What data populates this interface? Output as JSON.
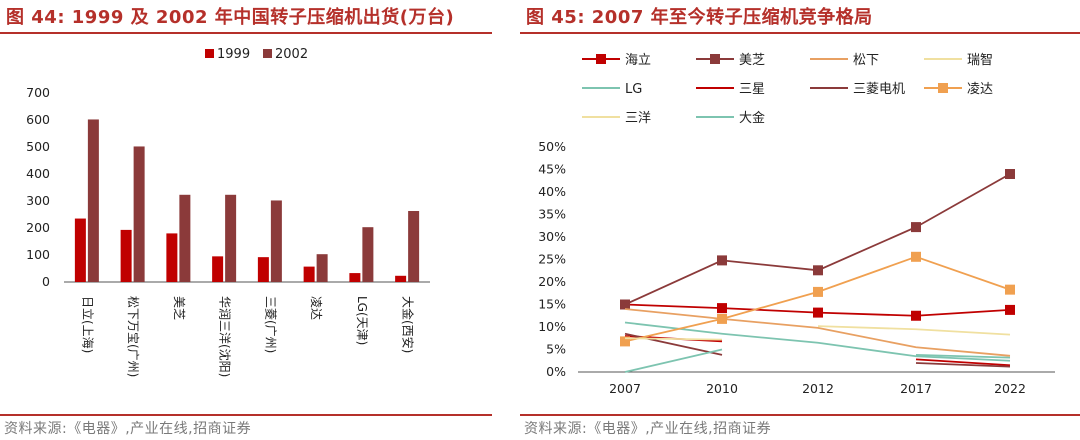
{
  "left_panel": {
    "title": "图 44: 1999 及 2002 年中国转子压缩机出货(万台)",
    "source": "资料来源:《电器》,产业在线,招商证券"
  },
  "right_panel": {
    "title": "图 45:  2007 年至今转子压缩机竞争格局",
    "source": "资料来源:《电器》,产业在线,招商证券"
  },
  "chart_data": [
    {
      "type": "bar",
      "title": "图 44: 1999 及 2002 年中国转子压缩机出货(万台)",
      "categories": [
        "日立(上海)",
        "松下万宝(广州)",
        "美芝",
        "华润三洋(沈阳)",
        "三菱(广州)",
        "凌达",
        "LG(天津)",
        "大金(西安)"
      ],
      "series": [
        {
          "name": "1999",
          "color": "#c00000",
          "values": [
            235,
            193,
            180,
            95,
            92,
            57,
            33,
            23
          ]
        },
        {
          "name": "2002",
          "color": "#8b3a3a",
          "values": [
            602,
            502,
            323,
            323,
            302,
            103,
            203,
            263
          ]
        }
      ],
      "yticks": [
        "0",
        "100",
        "200",
        "300",
        "400",
        "500",
        "600",
        "700"
      ],
      "ylim": [
        0,
        700
      ],
      "legend": "top-center",
      "grid": false
    },
    {
      "type": "line",
      "title": "图 45:  2007 年至今转子压缩机竞争格局",
      "x": [
        "2007",
        "2010",
        "2012",
        "2017",
        "2022"
      ],
      "yticks": [
        "0%",
        "5%",
        "10%",
        "15%",
        "20%",
        "25%",
        "30%",
        "35%",
        "40%",
        "45%",
        "50%"
      ],
      "ylim": [
        0,
        50
      ],
      "legend": "top",
      "grid": false,
      "series": [
        {
          "name": "海立",
          "color": "#c00000",
          "marker": true,
          "values": [
            15.0,
            14.2,
            13.2,
            12.5,
            13.8
          ]
        },
        {
          "name": "美芝",
          "color": "#8b3a3a",
          "marker": true,
          "values": [
            15.0,
            24.8,
            22.6,
            32.2,
            44.0
          ]
        },
        {
          "name": "松下",
          "color": "#e8a062",
          "marker": false,
          "values": [
            14.0,
            11.8,
            9.8,
            5.5,
            3.6
          ]
        },
        {
          "name": "瑞智",
          "color": "#f0e0a0",
          "marker": false,
          "values": [
            null,
            null,
            10.2,
            9.5,
            8.3
          ]
        },
        {
          "name": "LG",
          "color": "#7dc4b0",
          "marker": false,
          "values": [
            11.0,
            8.5,
            6.5,
            3.5,
            2.5
          ]
        },
        {
          "name": "三星",
          "color": "#c00000",
          "marker": false,
          "values": [
            8.0,
            6.8,
            null,
            2.8,
            1.5
          ]
        },
        {
          "name": "三菱电机",
          "color": "#8b3a3a",
          "marker": false,
          "values": [
            8.5,
            3.8,
            null,
            2.0,
            1.2
          ]
        },
        {
          "name": "凌达",
          "color": "#f0a050",
          "marker": true,
          "values": [
            6.8,
            11.8,
            17.8,
            25.6,
            18.3
          ]
        },
        {
          "name": "三洋",
          "color": "#f0e0a0",
          "marker": false,
          "values": [
            7.5,
            7.2,
            null,
            null,
            null
          ]
        },
        {
          "name": "大金",
          "color": "#7dc4b0",
          "marker": false,
          "values": [
            0.0,
            5.0,
            null,
            3.8,
            3.2
          ]
        }
      ]
    }
  ]
}
